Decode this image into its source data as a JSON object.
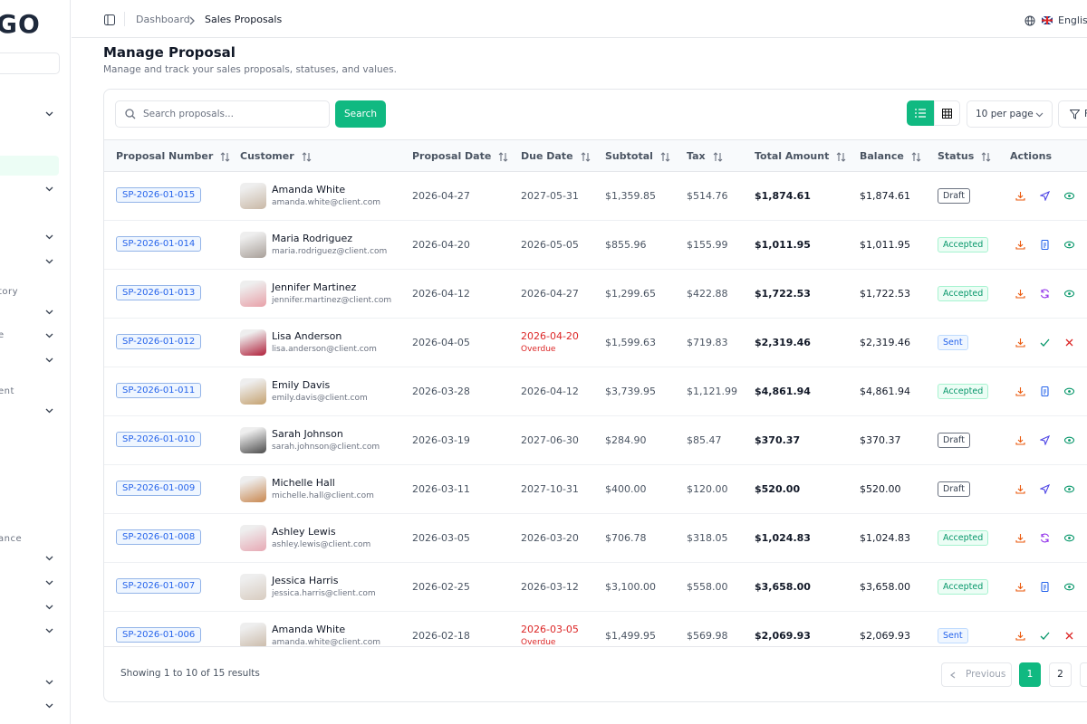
{
  "sidebar": {
    "logo": "GO",
    "fragments": [
      "tory",
      "e",
      "ent",
      "ance"
    ]
  },
  "topbar": {
    "breadcrumb": [
      "Dashboard",
      "Sales Proposals"
    ],
    "language": "English"
  },
  "page": {
    "title": "Manage Proposal",
    "subtitle": "Manage and track your sales proposals, statuses, and values."
  },
  "toolbar": {
    "search_placeholder": "Search proposals...",
    "search_button": "Search",
    "per_page": "10 per page",
    "filter": "F"
  },
  "table": {
    "headers": [
      "Proposal Number",
      "Customer",
      "Proposal Date",
      "Due Date",
      "Subtotal",
      "Tax",
      "Total Amount",
      "Balance",
      "Status",
      "Actions"
    ],
    "rows": [
      {
        "number": "SP-2026-01-015",
        "name": "Amanda White",
        "email": "amanda.white@client.com",
        "proposal_date": "2026-04-27",
        "due_date": "2027-05-31",
        "subtotal": "$1,359.85",
        "tax": "$514.76",
        "total": "$1,874.61",
        "balance": "$1,874.61",
        "status": "Draft"
      },
      {
        "number": "SP-2026-01-014",
        "name": "Maria Rodriguez",
        "email": "maria.rodriguez@client.com",
        "proposal_date": "2026-04-20",
        "due_date": "2026-05-05",
        "subtotal": "$855.96",
        "tax": "$155.99",
        "total": "$1,011.95",
        "balance": "$1,011.95",
        "status": "Accepted"
      },
      {
        "number": "SP-2026-01-013",
        "name": "Jennifer Martinez",
        "email": "jennifer.martinez@client.com",
        "proposal_date": "2026-04-12",
        "due_date": "2026-04-27",
        "subtotal": "$1,299.65",
        "tax": "$422.88",
        "total": "$1,722.53",
        "balance": "$1,722.53",
        "status": "Accepted"
      },
      {
        "number": "SP-2026-01-012",
        "name": "Lisa Anderson",
        "email": "lisa.anderson@client.com",
        "proposal_date": "2026-04-05",
        "due_date": "2026-04-20",
        "overdue": "Overdue",
        "subtotal": "$1,599.63",
        "tax": "$719.83",
        "total": "$2,319.46",
        "balance": "$2,319.46",
        "status": "Sent"
      },
      {
        "number": "SP-2026-01-011",
        "name": "Emily Davis",
        "email": "emily.davis@client.com",
        "proposal_date": "2026-03-28",
        "due_date": "2026-04-12",
        "subtotal": "$3,739.95",
        "tax": "$1,121.99",
        "total": "$4,861.94",
        "balance": "$4,861.94",
        "status": "Accepted"
      },
      {
        "number": "SP-2026-01-010",
        "name": "Sarah Johnson",
        "email": "sarah.johnson@client.com",
        "proposal_date": "2026-03-19",
        "due_date": "2027-06-30",
        "subtotal": "$284.90",
        "tax": "$85.47",
        "total": "$370.37",
        "balance": "$370.37",
        "status": "Draft"
      },
      {
        "number": "SP-2026-01-009",
        "name": "Michelle Hall",
        "email": "michelle.hall@client.com",
        "proposal_date": "2026-03-11",
        "due_date": "2027-10-31",
        "subtotal": "$400.00",
        "tax": "$120.00",
        "total": "$520.00",
        "balance": "$520.00",
        "status": "Draft"
      },
      {
        "number": "SP-2026-01-008",
        "name": "Ashley Lewis",
        "email": "ashley.lewis@client.com",
        "proposal_date": "2026-03-05",
        "due_date": "2026-03-20",
        "subtotal": "$706.78",
        "tax": "$318.05",
        "total": "$1,024.83",
        "balance": "$1,024.83",
        "status": "Accepted"
      },
      {
        "number": "SP-2026-01-007",
        "name": "Jessica Harris",
        "email": "jessica.harris@client.com",
        "proposal_date": "2026-02-25",
        "due_date": "2026-03-12",
        "subtotal": "$3,100.00",
        "tax": "$558.00",
        "total": "$3,658.00",
        "balance": "$3,658.00",
        "status": "Accepted"
      },
      {
        "number": "SP-2026-01-006",
        "name": "Amanda White",
        "email": "amanda.white@client.com",
        "proposal_date": "2026-02-18",
        "due_date": "2026-03-05",
        "overdue": "Overdue",
        "subtotal": "$1,499.95",
        "tax": "$569.98",
        "total": "$2,069.93",
        "balance": "$2,069.93",
        "status": "Sent"
      }
    ]
  },
  "footer": {
    "summary": "Showing 1 to 10 of 15 results",
    "previous": "Previous",
    "pages": [
      "1",
      "2"
    ]
  }
}
